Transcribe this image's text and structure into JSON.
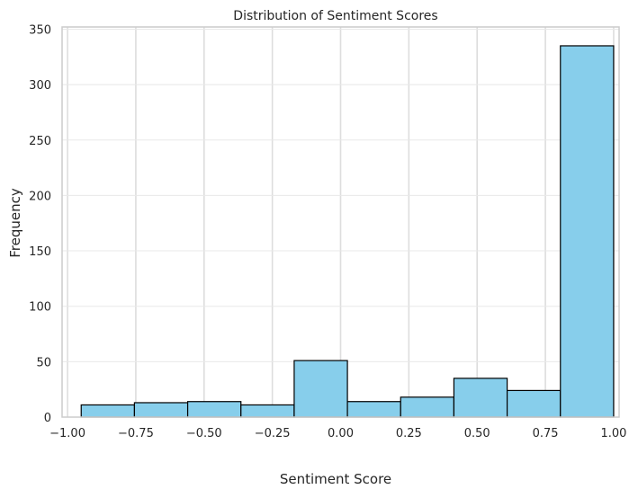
{
  "chart_data": {
    "type": "bar",
    "title": "Distribution of Sentiment Scores",
    "xlabel": "Sentiment Score",
    "ylabel": "Frequency",
    "xlim": [
      -1.02,
      1.02
    ],
    "ylim": [
      0,
      352
    ],
    "xticks": [
      -1.0,
      -0.75,
      -0.5,
      -0.25,
      0.0,
      0.25,
      0.5,
      0.75,
      1.0
    ],
    "xtick_labels": [
      "−1.00",
      "−0.75",
      "−0.50",
      "−0.25",
      "0.00",
      "0.25",
      "0.50",
      "0.75",
      "1.00"
    ],
    "yticks": [
      0,
      50,
      100,
      150,
      200,
      250,
      300,
      350
    ],
    "ytick_labels": [
      "0",
      "50",
      "100",
      "150",
      "200",
      "250",
      "300",
      "350"
    ],
    "bins": [
      {
        "x0": -0.95,
        "x1": -0.755,
        "count": 11
      },
      {
        "x0": -0.755,
        "x1": -0.56,
        "count": 13
      },
      {
        "x0": -0.56,
        "x1": -0.365,
        "count": 14
      },
      {
        "x0": -0.365,
        "x1": -0.17,
        "count": 11
      },
      {
        "x0": -0.17,
        "x1": 0.025,
        "count": 51
      },
      {
        "x0": 0.025,
        "x1": 0.22,
        "count": 14
      },
      {
        "x0": 0.22,
        "x1": 0.415,
        "count": 18
      },
      {
        "x0": 0.415,
        "x1": 0.61,
        "count": 35
      },
      {
        "x0": 0.61,
        "x1": 0.805,
        "count": 24
      },
      {
        "x0": 0.805,
        "x1": 1.0,
        "count": 335
      }
    ],
    "bar_color": "#87CEEB",
    "edge_color": "#000000",
    "grid": true,
    "grid_color": "#dddddd",
    "spine_color": "#cccccc"
  }
}
